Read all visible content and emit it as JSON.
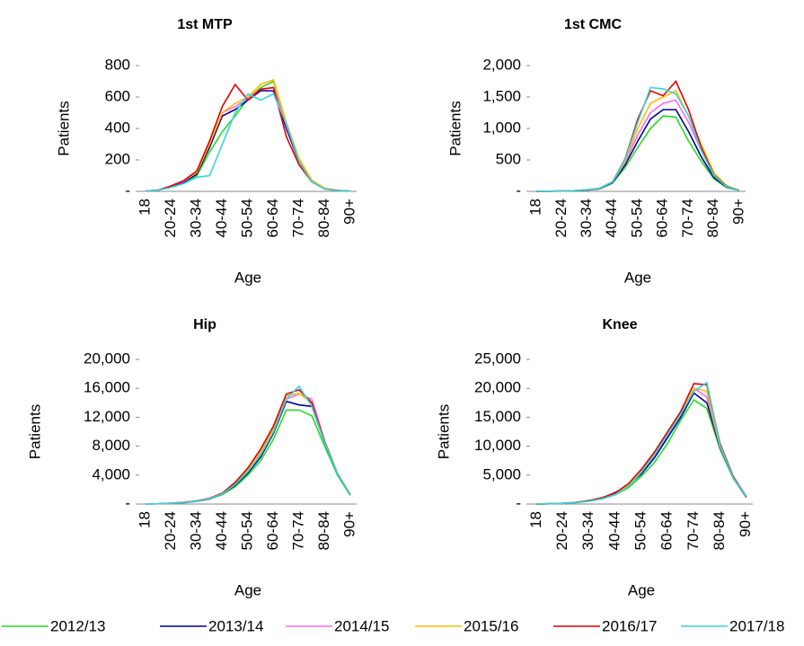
{
  "chart_data": [
    {
      "type": "line",
      "title": "1st MTP",
      "xlabel": "Age",
      "ylabel": "Patients",
      "categories": [
        "18",
        null,
        "20-24",
        null,
        "30-34",
        null,
        "40-44",
        null,
        "50-54",
        null,
        "60-64",
        null,
        "70-74",
        null,
        "80-84",
        null,
        "90+"
      ],
      "ylim": [
        0,
        800
      ],
      "yticks": [
        {
          "value": 0,
          "label": "-"
        },
        200,
        400,
        600,
        800
      ],
      "series": [
        {
          "name": "2012/13",
          "color": "#22dd22",
          "values": [
            2,
            8,
            30,
            55,
            100,
            250,
            380,
            480,
            590,
            660,
            700,
            430,
            200,
            70,
            20,
            5,
            2
          ]
        },
        {
          "name": "2013/14",
          "color": "#000099",
          "values": [
            2,
            8,
            30,
            60,
            110,
            280,
            480,
            520,
            580,
            640,
            640,
            400,
            190,
            60,
            18,
            5,
            2
          ]
        },
        {
          "name": "2014/15",
          "color": "#ff66ff",
          "values": [
            2,
            8,
            35,
            65,
            120,
            300,
            500,
            540,
            590,
            650,
            660,
            420,
            200,
            70,
            20,
            5,
            2
          ]
        },
        {
          "name": "2015/16",
          "color": "#ffc000",
          "values": [
            2,
            8,
            35,
            70,
            120,
            300,
            500,
            560,
            600,
            680,
            710,
            440,
            210,
            70,
            20,
            5,
            2
          ]
        },
        {
          "name": "2016/17",
          "color": "#e00000",
          "values": [
            2,
            8,
            35,
            70,
            130,
            320,
            540,
            680,
            580,
            650,
            660,
            350,
            170,
            60,
            15,
            5,
            2
          ]
        },
        {
          "name": "2017/18",
          "color": "#33d6e0",
          "values": [
            2,
            8,
            25,
            50,
            90,
            100,
            300,
            500,
            620,
            580,
            620,
            430,
            190,
            60,
            15,
            4,
            2
          ]
        }
      ]
    },
    {
      "type": "line",
      "title": "1st CMC",
      "xlabel": "Age",
      "ylabel": "Patients",
      "categories": [
        "18",
        null,
        "20-24",
        null,
        "30-34",
        null,
        "40-44",
        null,
        "50-54",
        null,
        "60-64",
        null,
        "70-74",
        null,
        "80-84",
        null,
        "90+"
      ],
      "ylim": [
        0,
        2000
      ],
      "yticks": [
        {
          "value": 0,
          "label": "-"
        },
        500,
        {
          "value": 1000,
          "label": "1,000"
        },
        {
          "value": 1500,
          "label": "1,500"
        },
        {
          "value": 2000,
          "label": "2,000"
        }
      ],
      "series": [
        {
          "name": "2012/13",
          "color": "#22dd22",
          "values": [
            2,
            3,
            5,
            10,
            20,
            40,
            130,
            380,
            700,
            1000,
            1200,
            1180,
            800,
            480,
            200,
            60,
            15
          ]
        },
        {
          "name": "2013/14",
          "color": "#000099",
          "values": [
            2,
            3,
            5,
            10,
            20,
            40,
            140,
            420,
            800,
            1150,
            1300,
            1300,
            950,
            550,
            220,
            70,
            15
          ]
        },
        {
          "name": "2014/15",
          "color": "#ff66ff",
          "values": [
            2,
            3,
            5,
            12,
            25,
            45,
            150,
            460,
            900,
            1250,
            1400,
            1450,
            1100,
            650,
            250,
            80,
            15
          ]
        },
        {
          "name": "2015/16",
          "color": "#ffc000",
          "values": [
            2,
            3,
            5,
            12,
            25,
            45,
            150,
            480,
            1000,
            1400,
            1500,
            1600,
            1200,
            750,
            300,
            90,
            20
          ]
        },
        {
          "name": "2016/17",
          "color": "#e00000",
          "values": [
            2,
            3,
            6,
            12,
            25,
            50,
            150,
            520,
            1150,
            1600,
            1520,
            1750,
            1300,
            700,
            260,
            80,
            15
          ]
        },
        {
          "name": "2017/18",
          "color": "#33d6e0",
          "values": [
            2,
            3,
            6,
            12,
            25,
            50,
            150,
            510,
            1100,
            1650,
            1630,
            1550,
            1200,
            650,
            250,
            75,
            15
          ]
        }
      ]
    },
    {
      "type": "line",
      "title": "Hip",
      "xlabel": "Age",
      "ylabel": "Patients",
      "categories": [
        "18",
        null,
        "20-24",
        null,
        "30-34",
        null,
        "40-44",
        null,
        "50-54",
        null,
        "60-64",
        null,
        "70-74",
        null,
        "80-84",
        null,
        "90+"
      ],
      "ylim": [
        0,
        20000
      ],
      "yticks": [
        {
          "value": 0,
          "label": "-"
        },
        {
          "value": 4000,
          "label": "4,000"
        },
        {
          "value": 8000,
          "label": "8,000"
        },
        {
          "value": 12000,
          "label": "12,000"
        },
        {
          "value": 16000,
          "label": "16,000"
        },
        {
          "value": 20000,
          "label": "20,000"
        }
      ],
      "series": [
        {
          "name": "2012/13",
          "color": "#22dd22",
          "values": [
            20,
            40,
            100,
            200,
            400,
            700,
            1300,
            2400,
            4000,
            6000,
            9000,
            13000,
            13000,
            12200,
            8000,
            4000,
            1200
          ]
        },
        {
          "name": "2013/14",
          "color": "#000099",
          "values": [
            20,
            40,
            100,
            200,
            400,
            700,
            1400,
            2600,
            4300,
            6500,
            9800,
            14200,
            13700,
            13500,
            8500,
            4200,
            1300
          ]
        },
        {
          "name": "2014/15",
          "color": "#ff66ff",
          "values": [
            20,
            40,
            100,
            220,
            420,
            750,
            1400,
            2800,
            4600,
            7000,
            10200,
            14500,
            15200,
            14500,
            8800,
            4300,
            1300
          ]
        },
        {
          "name": "2015/16",
          "color": "#ffc000",
          "values": [
            20,
            40,
            100,
            220,
            420,
            750,
            1400,
            2900,
            4800,
            7200,
            10400,
            15000,
            15300,
            14000,
            8700,
            4300,
            1300
          ]
        },
        {
          "name": "2016/17",
          "color": "#e00000",
          "values": [
            20,
            40,
            110,
            230,
            450,
            800,
            1500,
            3000,
            5000,
            7600,
            10800,
            15200,
            15800,
            14000,
            8600,
            4200,
            1300
          ]
        },
        {
          "name": "2017/18",
          "color": "#33d6e0",
          "values": [
            20,
            40,
            100,
            210,
            420,
            750,
            1400,
            2700,
            4500,
            6800,
            10000,
            14500,
            16300,
            13500,
            8500,
            4200,
            1300
          ]
        }
      ]
    },
    {
      "type": "line",
      "title": "Knee",
      "xlabel": "Age",
      "ylabel": "Patients",
      "categories": [
        "18",
        null,
        "20-24",
        null,
        "30-34",
        null,
        "40-44",
        null,
        "50-54",
        null,
        "60-64",
        null,
        "70-74",
        null,
        "80-84",
        null,
        "90+"
      ],
      "ylim": [
        0,
        25000
      ],
      "yticks": [
        {
          "value": 0,
          "label": "-"
        },
        {
          "value": 5000,
          "label": "5,000"
        },
        {
          "value": 10000,
          "label": "10,000"
        },
        {
          "value": 15000,
          "label": "15,000"
        },
        {
          "value": 20000,
          "label": "20,000"
        },
        {
          "value": 25000,
          "label": "25,000"
        }
      ],
      "series": [
        {
          "name": "2012/13",
          "color": "#22dd22",
          "values": [
            20,
            40,
            120,
            250,
            500,
            900,
            1600,
            2800,
            4800,
            7200,
            10500,
            14500,
            18000,
            16500,
            9500,
            4500,
            1200
          ]
        },
        {
          "name": "2013/14",
          "color": "#000099",
          "values": [
            20,
            40,
            120,
            260,
            550,
            1000,
            2000,
            3200,
            5200,
            8000,
            11500,
            15000,
            19200,
            17500,
            9800,
            4600,
            1200
          ]
        },
        {
          "name": "2014/15",
          "color": "#ff66ff",
          "values": [
            20,
            40,
            120,
            260,
            550,
            1000,
            1800,
            3200,
            5500,
            8500,
            12000,
            15500,
            20000,
            18500,
            10000,
            4700,
            1300
          ]
        },
        {
          "name": "2015/16",
          "color": "#ffc000",
          "values": [
            20,
            40,
            120,
            260,
            550,
            1000,
            1800,
            3300,
            5700,
            8800,
            12200,
            15500,
            20000,
            19500,
            10000,
            4700,
            1300
          ]
        },
        {
          "name": "2016/17",
          "color": "#e00000",
          "values": [
            20,
            40,
            130,
            280,
            600,
            1100,
            1900,
            3500,
            6000,
            9000,
            12500,
            16000,
            20800,
            20600,
            10500,
            4800,
            1300
          ]
        },
        {
          "name": "2017/18",
          "color": "#33d6e0",
          "values": [
            20,
            40,
            120,
            250,
            500,
            900,
            1600,
            3000,
            5500,
            8500,
            12000,
            15500,
            19500,
            21000,
            10200,
            4600,
            1300
          ]
        }
      ]
    }
  ]
}
